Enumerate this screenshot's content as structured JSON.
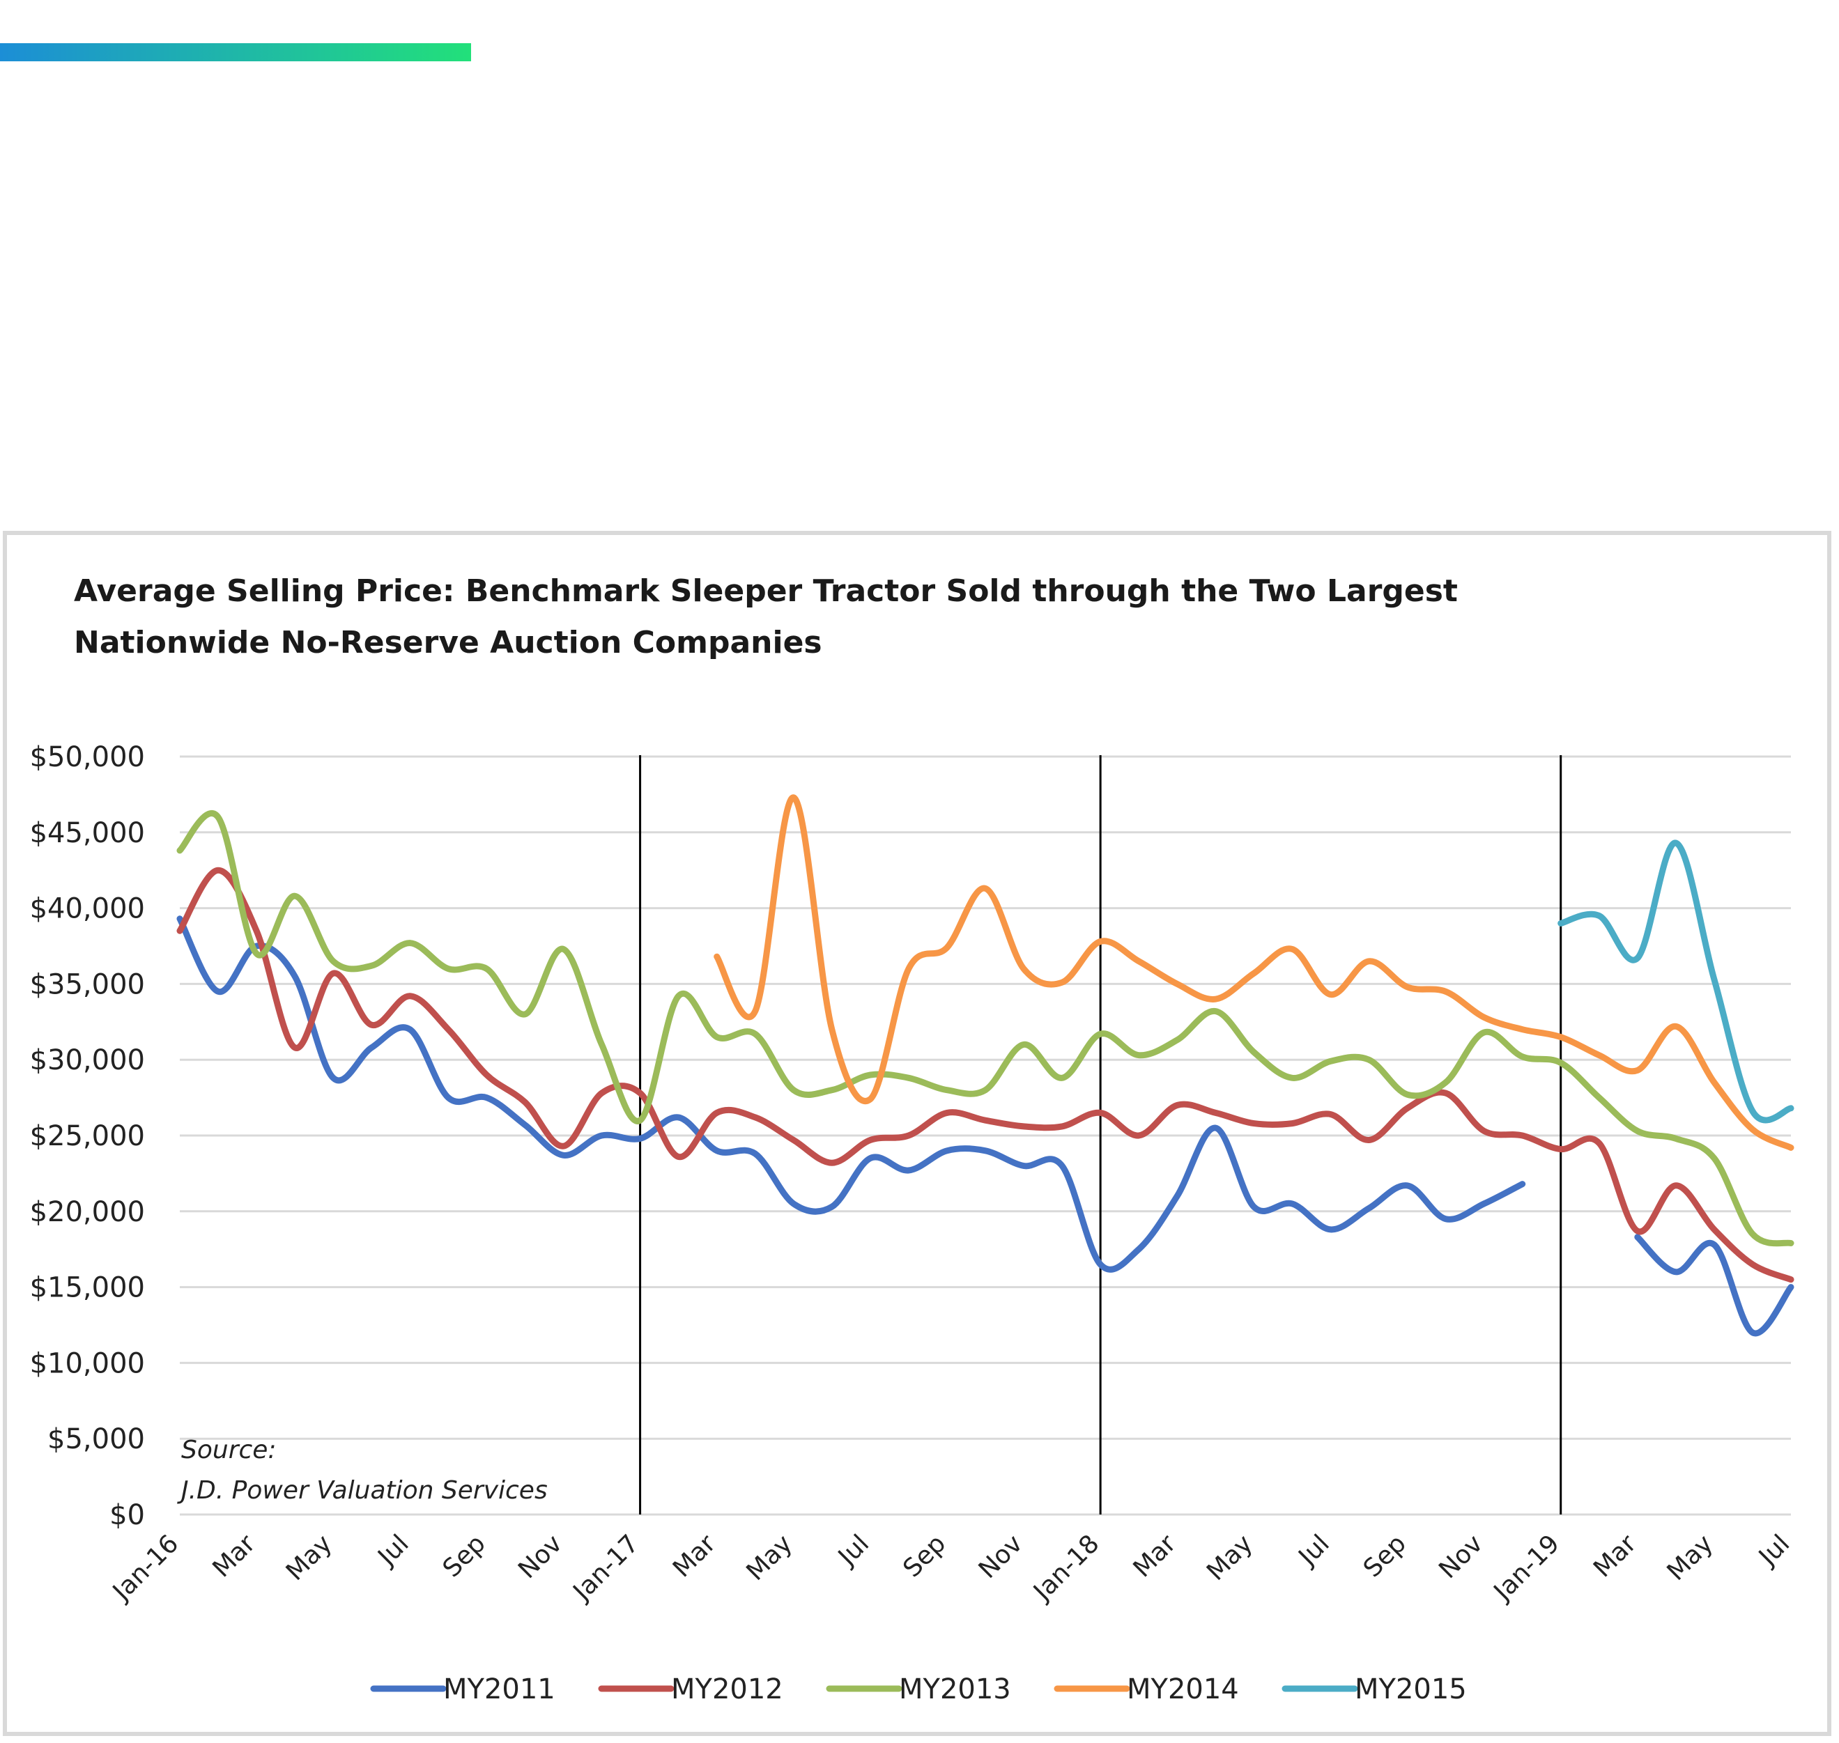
{
  "chart_data": {
    "type": "line",
    "title_lines": [
      "Average Selling Price: Benchmark Sleeper Tractor Sold through the Two Largest",
      "Nationwide No-Reserve Auction Companies"
    ],
    "xlabel": "",
    "ylabel": "",
    "ylim": [
      0,
      50000
    ],
    "y_ticks": [
      0,
      5000,
      10000,
      15000,
      20000,
      25000,
      30000,
      35000,
      40000,
      45000,
      50000
    ],
    "y_tick_labels": [
      "$0",
      "$5,000",
      "$10,000",
      "$15,000",
      "$20,000",
      "$25,000",
      "$30,000",
      "$35,000",
      "$40,000",
      "$45,000",
      "$50,000"
    ],
    "x_months": [
      "Jan-16",
      "Feb-16",
      "Mar-16",
      "Apr-16",
      "May-16",
      "Jun-16",
      "Jul-16",
      "Aug-16",
      "Sep-16",
      "Oct-16",
      "Nov-16",
      "Dec-16",
      "Jan-17",
      "Feb-17",
      "Mar-17",
      "Apr-17",
      "May-17",
      "Jun-17",
      "Jul-17",
      "Aug-17",
      "Sep-17",
      "Oct-17",
      "Nov-17",
      "Dec-17",
      "Jan-18",
      "Feb-18",
      "Mar-18",
      "Apr-18",
      "May-18",
      "Jun-18",
      "Jul-18",
      "Aug-18",
      "Sep-18",
      "Oct-18",
      "Nov-18",
      "Dec-18",
      "Jan-19",
      "Feb-19",
      "Mar-19",
      "Apr-19",
      "May-19",
      "Jun-19",
      "Jul-19"
    ],
    "x_tick_labels": [
      {
        "month": "Jan-16",
        "label": "Jan-16"
      },
      {
        "month": "Mar-16",
        "label": "Mar"
      },
      {
        "month": "May-16",
        "label": "May"
      },
      {
        "month": "Jul-16",
        "label": "Jul"
      },
      {
        "month": "Sep-16",
        "label": "Sep"
      },
      {
        "month": "Nov-16",
        "label": "Nov"
      },
      {
        "month": "Jan-17",
        "label": "Jan-17"
      },
      {
        "month": "Mar-17",
        "label": "Mar"
      },
      {
        "month": "May-17",
        "label": "May"
      },
      {
        "month": "Jul-17",
        "label": "Jul"
      },
      {
        "month": "Sep-17",
        "label": "Sep"
      },
      {
        "month": "Nov-17",
        "label": "Nov"
      },
      {
        "month": "Jan-18",
        "label": "Jan-18"
      },
      {
        "month": "Mar-18",
        "label": "Mar"
      },
      {
        "month": "May-18",
        "label": "May"
      },
      {
        "month": "Jul-18",
        "label": "Jul"
      },
      {
        "month": "Sep-18",
        "label": "Sep"
      },
      {
        "month": "Nov-18",
        "label": "Nov"
      },
      {
        "month": "Jan-19",
        "label": "Jan-19"
      },
      {
        "month": "Mar-19",
        "label": "Mar"
      },
      {
        "month": "May-19",
        "label": "May"
      },
      {
        "month": "Jul-19",
        "label": "Jul"
      }
    ],
    "year_dividers": [
      "Jan-17",
      "Jan-18",
      "Jan-19"
    ],
    "grid": true,
    "legend_position": "bottom",
    "series": [
      {
        "name": "MY2011",
        "color": "#4472c4",
        "values": [
          39300,
          34500,
          37500,
          35500,
          28800,
          30800,
          32000,
          27500,
          27500,
          25700,
          23700,
          25000,
          24800,
          26200,
          24000,
          23800,
          20500,
          20300,
          23500,
          22700,
          24000,
          24000,
          23000,
          23000,
          16500,
          17500,
          21000,
          25500,
          20300,
          20500,
          18800,
          20200,
          21700,
          19500,
          20500,
          21800,
          null,
          null,
          18300,
          16000,
          17800,
          12000,
          15000
        ]
      },
      {
        "name": "MY2012",
        "color": "#c0504d",
        "values": [
          38500,
          42500,
          38500,
          30800,
          35700,
          32300,
          34200,
          32000,
          29000,
          27200,
          24300,
          27800,
          27800,
          23600,
          26500,
          26200,
          24700,
          23200,
          24700,
          25000,
          26500,
          26000,
          25600,
          25600,
          26500,
          25000,
          27000,
          26500,
          25800,
          25800,
          26400,
          24700,
          26800,
          27800,
          25300,
          25000,
          24100,
          24500,
          18700,
          21700,
          18800,
          16500,
          15500
        ]
      },
      {
        "name": "MY2013",
        "color": "#9bbb59",
        "values": [
          43800,
          46000,
          37000,
          40800,
          36500,
          36200,
          37700,
          36000,
          36000,
          33000,
          37300,
          31000,
          26000,
          34200,
          31500,
          31700,
          28000,
          28000,
          29000,
          28800,
          28000,
          28000,
          31000,
          28800,
          31700,
          30300,
          31300,
          33200,
          30500,
          28800,
          29900,
          30000,
          27700,
          28500,
          31800,
          30200,
          29800,
          27500,
          25300,
          24800,
          23500,
          18500,
          17900
        ]
      },
      {
        "name": "MY2014",
        "color": "#f79646",
        "values": [
          null,
          null,
          null,
          null,
          null,
          null,
          null,
          null,
          null,
          null,
          null,
          null,
          null,
          null,
          36800,
          33200,
          47300,
          32000,
          27400,
          36000,
          37400,
          41300,
          36000,
          35100,
          37800,
          36500,
          35000,
          34000,
          35700,
          37300,
          34300,
          36500,
          34800,
          34500,
          32800,
          32000,
          31500,
          30300,
          29300,
          32200,
          28500,
          25400,
          24200
        ]
      },
      {
        "name": "MY2015",
        "color": "#4bacc6",
        "values": [
          null,
          null,
          null,
          null,
          null,
          null,
          null,
          null,
          null,
          null,
          null,
          null,
          null,
          null,
          null,
          null,
          null,
          null,
          null,
          null,
          null,
          null,
          null,
          null,
          null,
          null,
          null,
          null,
          null,
          null,
          null,
          null,
          null,
          null,
          null,
          null,
          39000,
          39500,
          36700,
          44300,
          35300,
          26600,
          26800
        ]
      }
    ],
    "annotation_lines": [
      "Source:",
      "J.D. Power Valuation Services"
    ]
  },
  "colors": {
    "accent_gradient_start": "#1c8ed6",
    "accent_gradient_end": "#22e07a",
    "grid": "#d9d9d9",
    "divider": "#000000",
    "frame": "#d9d9d9"
  }
}
